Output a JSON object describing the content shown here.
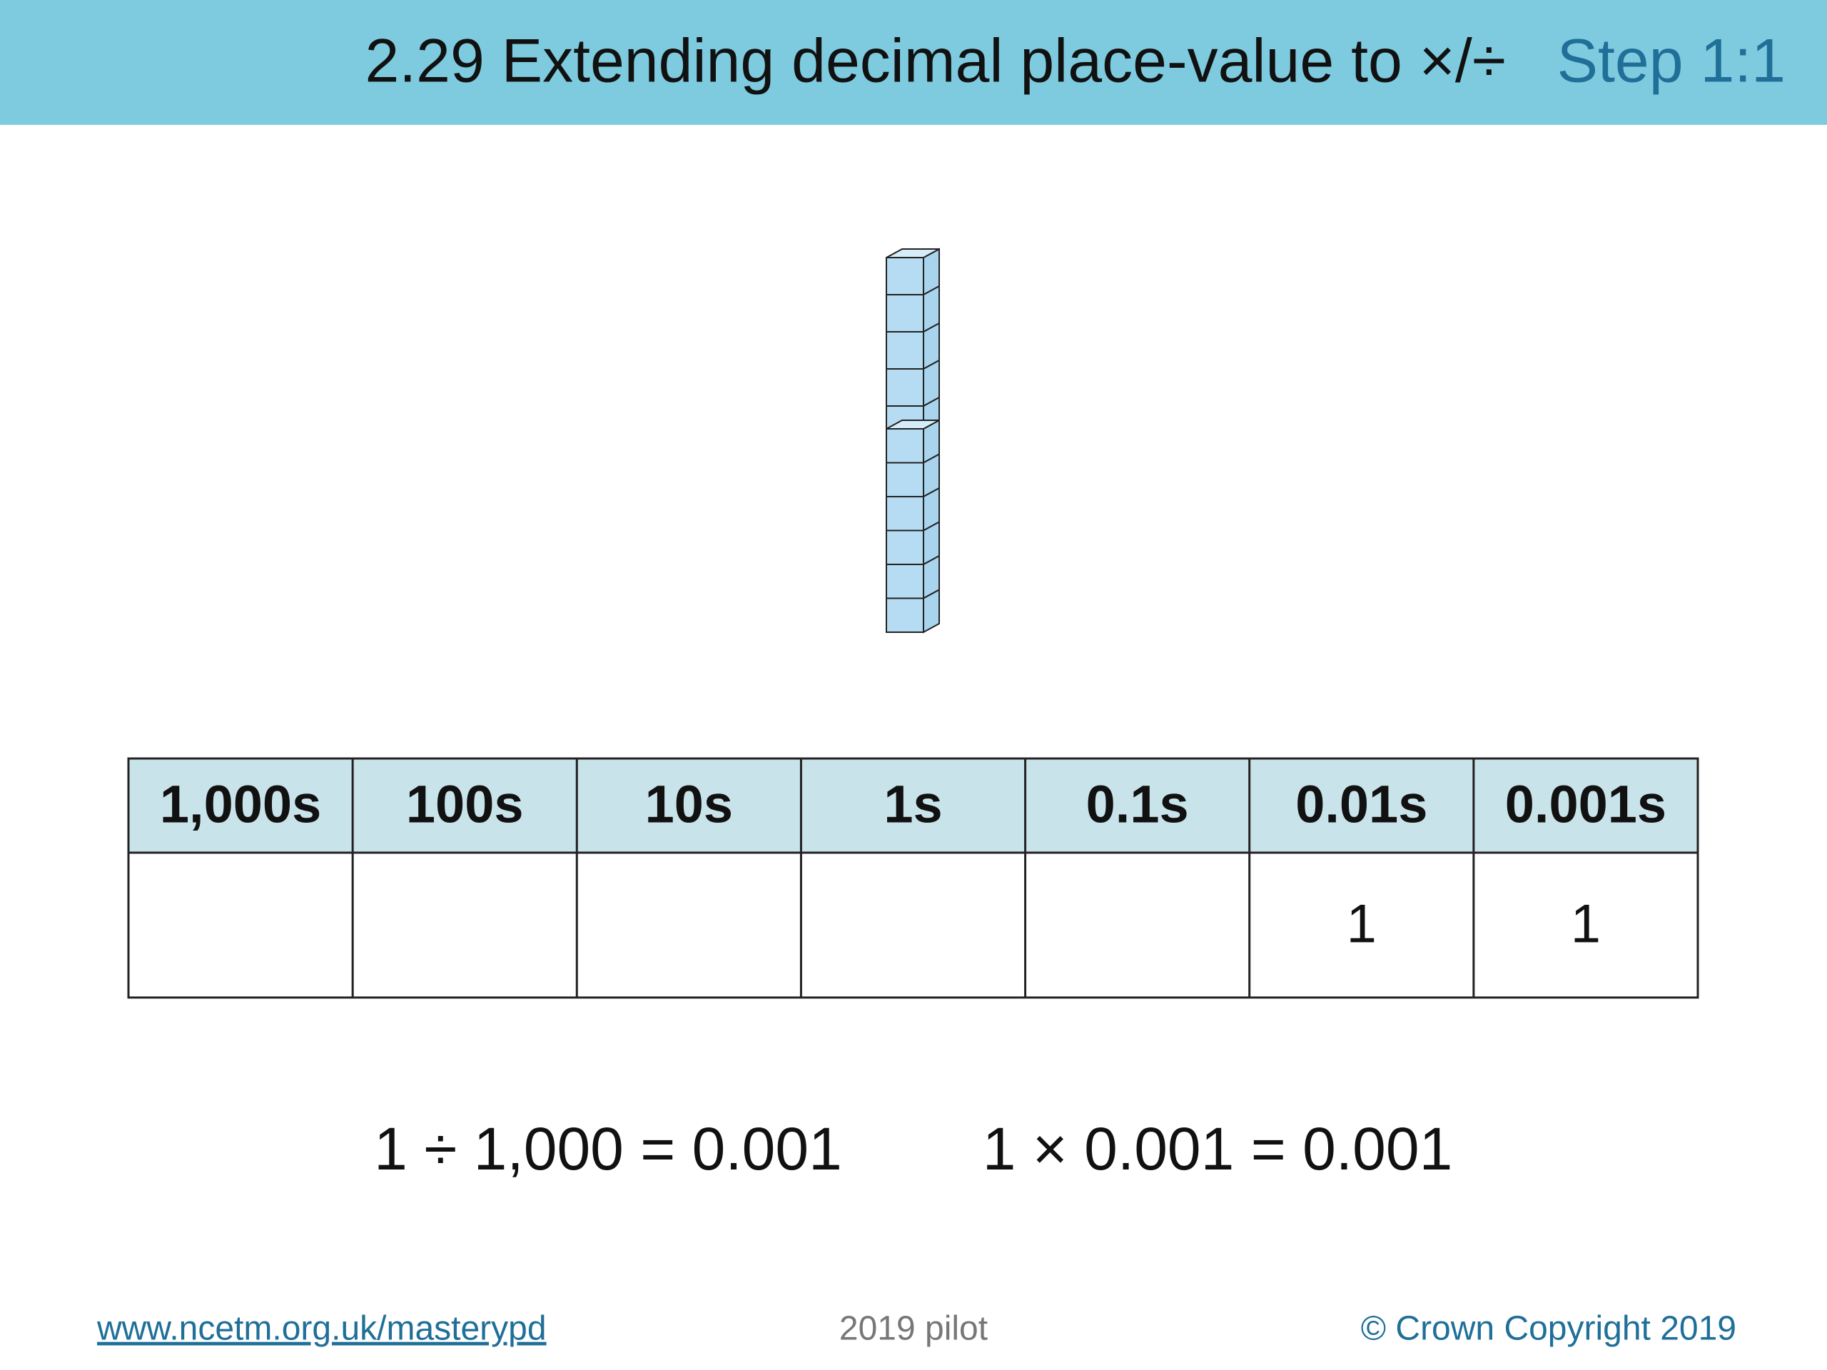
{
  "header": {
    "title": "2.29 Extending decimal place-value to ×/÷",
    "step": "Step 1:1"
  },
  "table": {
    "headers": [
      "1,000s",
      "100s",
      "10s",
      "1s",
      "0.1s",
      "0.01s",
      "0.001s"
    ],
    "rows": [
      [
        null,
        null,
        null,
        null,
        null,
        "1",
        "1"
      ]
    ]
  },
  "equations": [
    "1 ÷ 1,000 = 0.001",
    "1 × 0.001 = 0.001"
  ],
  "footer": {
    "link": "www.ncetm.org.uk/masterypd",
    "center": "2019 pilot",
    "copyright": "© Crown Copyright 2019"
  }
}
